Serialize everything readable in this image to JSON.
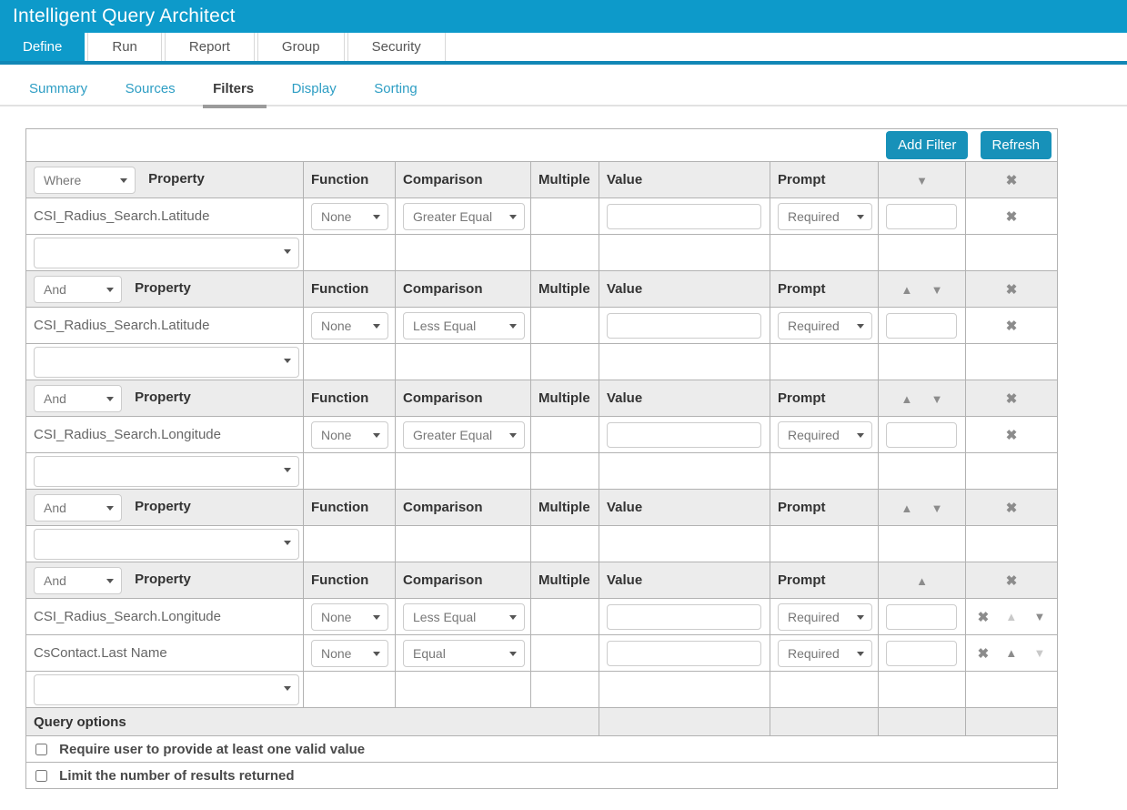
{
  "app": {
    "title": "Intelligent Query Architect"
  },
  "colors": {
    "accent": "#0d9aca",
    "tab_underline": "#1187b6",
    "button": "#1791b9",
    "subtab_link": "#2e9ec4"
  },
  "main_tabs": {
    "define": "Define",
    "run": "Run",
    "report": "Report",
    "group": "Group",
    "security": "Security"
  },
  "sub_tabs": {
    "summary": "Summary",
    "sources": "Sources",
    "filters": "Filters",
    "display": "Display",
    "sorting": "Sorting"
  },
  "toolbar": {
    "add_filter": "Add Filter",
    "refresh": "Refresh"
  },
  "columns": {
    "property": "Property",
    "function": "Function",
    "comparison": "Comparison",
    "multiple": "Multiple",
    "value": "Value",
    "prompt": "Prompt"
  },
  "icons": {
    "remove": "✖",
    "up": "▲",
    "down": "▼"
  },
  "filters": {
    "groups": [
      {
        "operator": "Where",
        "rows": [
          {
            "property": "CSI_Radius_Search.Latitude",
            "function": "None",
            "comparison": "Greater Equal",
            "value": "",
            "prompt": "Required",
            "prompt_value": ""
          }
        ]
      },
      {
        "operator": "And",
        "rows": [
          {
            "property": "CSI_Radius_Search.Latitude",
            "function": "None",
            "comparison": "Less Equal",
            "value": "",
            "prompt": "Required",
            "prompt_value": ""
          }
        ]
      },
      {
        "operator": "And",
        "rows": [
          {
            "property": "CSI_Radius_Search.Longitude",
            "function": "None",
            "comparison": "Greater Equal",
            "value": "",
            "prompt": "Required",
            "prompt_value": ""
          }
        ]
      },
      {
        "operator": "And",
        "rows": []
      },
      {
        "operator": "And",
        "rows": [
          {
            "property": "CSI_Radius_Search.Longitude",
            "function": "None",
            "comparison": "Less Equal",
            "value": "",
            "prompt": "Required",
            "prompt_value": ""
          },
          {
            "property": "CsContact.Last Name",
            "function": "None",
            "comparison": "Equal",
            "value": "",
            "prompt": "Required",
            "prompt_value": ""
          }
        ]
      }
    ]
  },
  "query_options": {
    "label": "Query options",
    "require_valid": {
      "label": "Require user to provide at least one valid value",
      "checked": false
    },
    "limit_results": {
      "label": "Limit the number of results returned",
      "checked": false
    }
  }
}
